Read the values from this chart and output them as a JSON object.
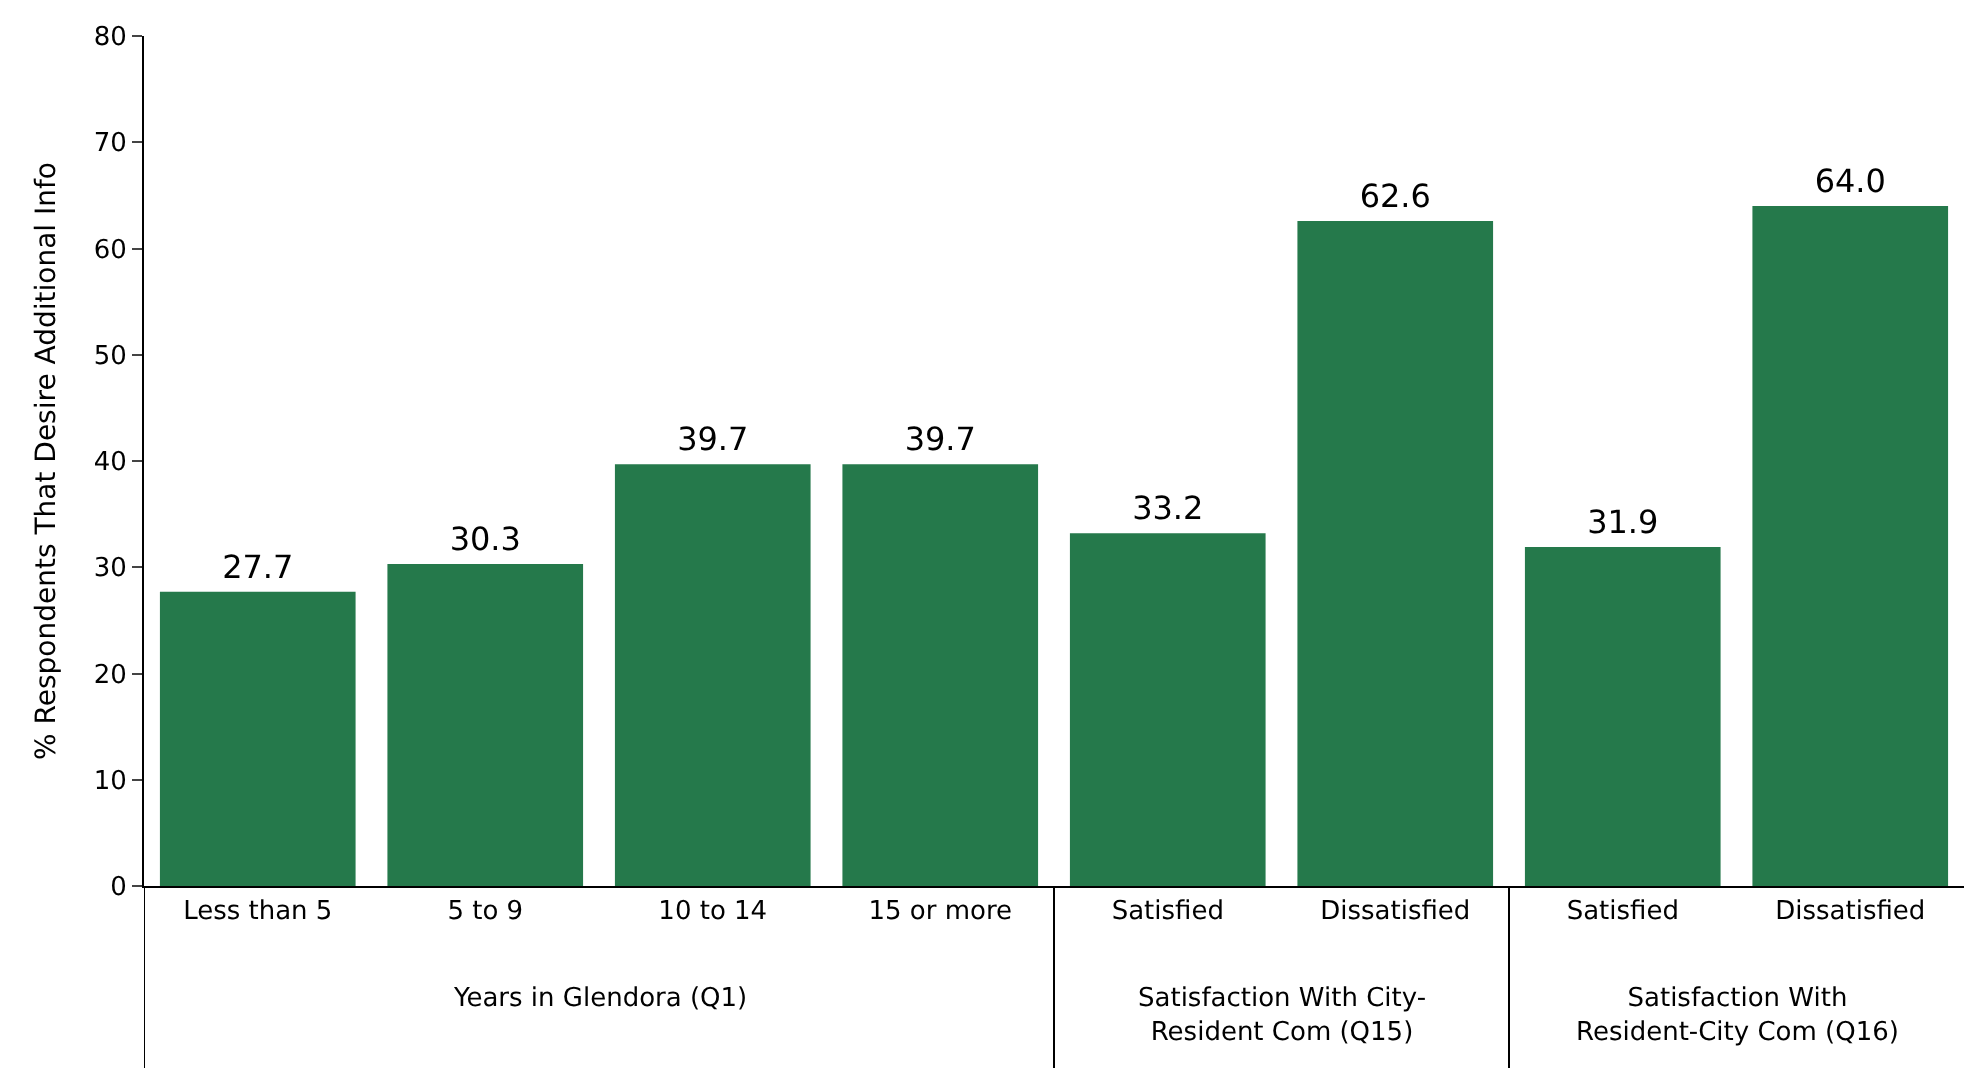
{
  "chart_data": {
    "type": "bar",
    "ylabel": "% Respondents That Desire Additional Info",
    "categories": [
      "Less than 5",
      "5 to 9",
      "10 to 14",
      "15 or more",
      "Satisfied",
      "Dissatisfied",
      "Satisfied",
      "Dissatisfied"
    ],
    "values": [
      27.7,
      30.3,
      39.7,
      39.7,
      33.2,
      62.6,
      31.9,
      64.0
    ],
    "value_labels": [
      "27.7",
      "30.3",
      "39.7",
      "39.7",
      "33.2",
      "62.6",
      "31.9",
      "64.0"
    ],
    "color": "#25794b",
    "ylim": [
      0,
      80
    ],
    "yticks": [
      0,
      10,
      20,
      30,
      40,
      50,
      60,
      70,
      80
    ],
    "annotations": [
      "Years in Glendora (Q1)",
      "Satisfaction With City-Resident Com (Q15)",
      "Satisfaction With Resident-City Com (Q16)"
    ]
  }
}
